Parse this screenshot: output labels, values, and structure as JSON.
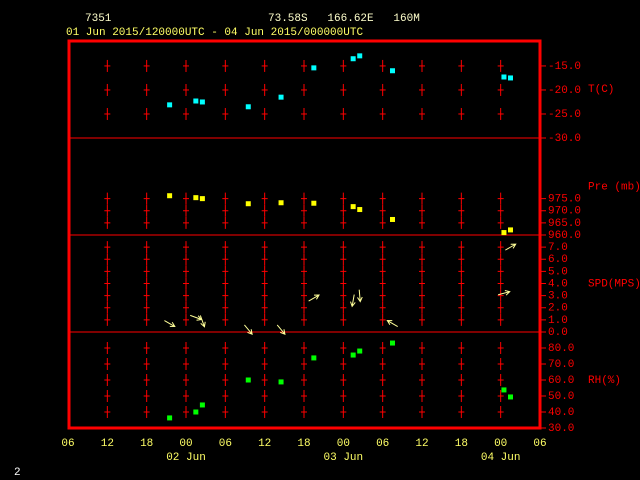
{
  "header": {
    "station": "7351",
    "location": "73.58S   166.62E   160M",
    "period": "01 Jun 2015/120000UTC - 04 Jun 2015/000000UTC"
  },
  "page_number": "2",
  "chart_data": [
    {
      "type": "scatter",
      "label": "T(C)",
      "color": "#00ffff",
      "x": [
        15.5,
        19.5,
        20.5,
        27.5,
        32.5,
        37.5,
        43.5,
        44.5,
        49.5,
        66.5,
        67.5
      ],
      "values": [
        -23.1,
        -22.3,
        -22.5,
        -23.5,
        -21.5,
        -15.4,
        -13.5,
        -12.9,
        -16.0,
        -17.3,
        -17.5
      ],
      "xlim": [
        0,
        72
      ],
      "ylim": [
        -30,
        -9.6
      ],
      "yticks": [
        {
          "value": -15,
          "label": "-15.0"
        },
        {
          "value": -20,
          "label": "-20.0"
        },
        {
          "value": -25,
          "label": "-25.0"
        },
        {
          "value": -30,
          "label": "-30.0"
        }
      ]
    },
    {
      "type": "scatter",
      "label": "Pre (mb)",
      "color": "#ffff00",
      "x": [
        15.5,
        19.5,
        20.5,
        27.5,
        32.5,
        37.5,
        43.5,
        44.5,
        49.5,
        66.5,
        67.5
      ],
      "values": [
        976.2,
        975.4,
        975.0,
        972.9,
        973.3,
        973.1,
        971.7,
        970.5,
        966.4,
        961.0,
        962.1
      ],
      "xlim": [
        0,
        72
      ],
      "ylim": [
        960,
        1000
      ],
      "yticks": [
        {
          "value": 975,
          "label": "975.0"
        },
        {
          "value": 970,
          "label": "970.0"
        },
        {
          "value": 965,
          "label": "965.0"
        },
        {
          "value": 960,
          "label": "960.0"
        }
      ]
    },
    {
      "type": "wind",
      "label": "SPD(MPS)",
      "color": "#ffff99",
      "x": [
        15.5,
        19.5,
        20.5,
        27.5,
        32.5,
        37.5,
        43.5,
        44.5,
        49.5,
        66.5,
        67.5
      ],
      "values": [
        0.7,
        1.2,
        0.9,
        0.2,
        0.2,
        2.8,
        2.6,
        3.0,
        0.7,
        3.2,
        7.0
      ],
      "direction": [
        120,
        110,
        160,
        140,
        140,
        60,
        190,
        175,
        300,
        75,
        60
      ],
      "xlim": [
        0,
        72
      ],
      "ylim": [
        0,
        8
      ],
      "yticks": [
        {
          "value": 7,
          "label": "7.0"
        },
        {
          "value": 6,
          "label": "6.0"
        },
        {
          "value": 5,
          "label": "5.0"
        },
        {
          "value": 4,
          "label": "4.0"
        },
        {
          "value": 3,
          "label": "3.0"
        },
        {
          "value": 2,
          "label": "2.0"
        },
        {
          "value": 1,
          "label": "1.0"
        },
        {
          "value": 0,
          "label": "0.0"
        }
      ]
    },
    {
      "type": "scatter",
      "label": "RH(%)",
      "color": "#00ff00",
      "x": [
        15.5,
        19.5,
        20.5,
        27.5,
        32.5,
        37.5,
        43.5,
        44.5,
        49.5,
        66.5,
        67.5
      ],
      "values": [
        36.3,
        40.0,
        44.4,
        60.0,
        58.8,
        73.8,
        75.6,
        78.1,
        83.1,
        53.8,
        49.4
      ],
      "xlim": [
        0,
        72
      ],
      "ylim": [
        30,
        90
      ],
      "yticks": [
        {
          "value": 80,
          "label": "80.0"
        },
        {
          "value": 70,
          "label": "70.0"
        },
        {
          "value": 60,
          "label": "60.0"
        },
        {
          "value": 50,
          "label": "50.0"
        },
        {
          "value": 40,
          "label": "40.0"
        },
        {
          "value": 30,
          "label": "30.0"
        }
      ],
      "xticks": [
        {
          "value": 0,
          "label": "06"
        },
        {
          "value": 6,
          "label": "12"
        },
        {
          "value": 12,
          "label": "18"
        },
        {
          "value": 18,
          "label": "00"
        },
        {
          "value": 24,
          "label": "06"
        },
        {
          "value": 30,
          "label": "12"
        },
        {
          "value": 36,
          "label": "18"
        },
        {
          "value": 42,
          "label": "00"
        },
        {
          "value": 48,
          "label": "06"
        },
        {
          "value": 54,
          "label": "12"
        },
        {
          "value": 60,
          "label": "18"
        },
        {
          "value": 66,
          "label": "00"
        },
        {
          "value": 72,
          "label": "06"
        }
      ],
      "date_labels": [
        {
          "value": 18,
          "label": "02 Jun"
        },
        {
          "value": 42,
          "label": "03 Jun"
        },
        {
          "value": 66,
          "label": "04 Jun"
        }
      ]
    }
  ]
}
